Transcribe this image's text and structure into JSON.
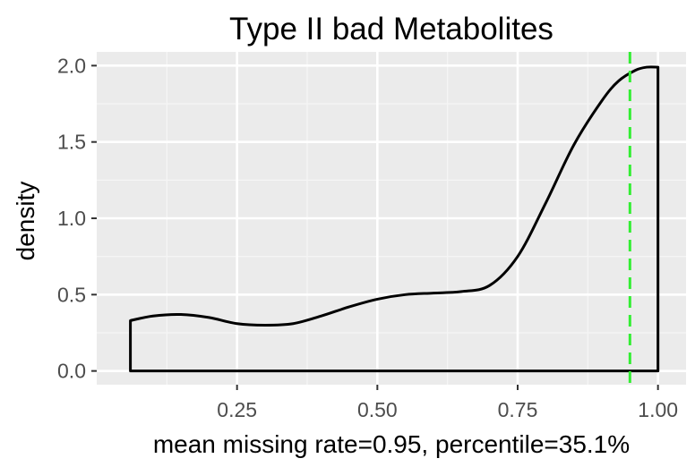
{
  "chart_data": {
    "type": "density",
    "title": "Type II bad Metabolites",
    "xlabel": "mean missing rate=0.95, percentile=35.1%",
    "ylabel": "density",
    "xlim": [
      0.0,
      1.05
    ],
    "ylim": [
      -0.09,
      2.09
    ],
    "x_ticks": [
      0.25,
      0.5,
      0.75,
      1.0
    ],
    "x_tick_labels": [
      "0.25",
      "0.50",
      "0.75",
      "1.00"
    ],
    "y_ticks": [
      0.0,
      0.5,
      1.0,
      1.5,
      2.0
    ],
    "y_tick_labels": [
      "0.0",
      "0.5",
      "1.0",
      "1.5",
      "2.0"
    ],
    "grid": true,
    "series": [
      {
        "x": [
          0.06,
          0.1,
          0.15,
          0.2,
          0.25,
          0.3,
          0.35,
          0.4,
          0.45,
          0.5,
          0.55,
          0.6,
          0.65,
          0.7,
          0.75,
          0.8,
          0.85,
          0.9,
          0.93,
          0.96,
          0.98,
          1.0
        ],
        "y": [
          0.33,
          0.36,
          0.37,
          0.35,
          0.31,
          0.3,
          0.31,
          0.36,
          0.42,
          0.47,
          0.5,
          0.51,
          0.52,
          0.56,
          0.75,
          1.1,
          1.48,
          1.77,
          1.9,
          1.97,
          1.99,
          1.99
        ]
      }
    ],
    "vline": {
      "x": 0.95,
      "color": "#33ee33",
      "style": "dashed"
    },
    "colors": {
      "panel": "#ebebeb",
      "grid_major": "#ffffff",
      "grid_minor": "#f5f5f5",
      "line": "#000000"
    }
  }
}
